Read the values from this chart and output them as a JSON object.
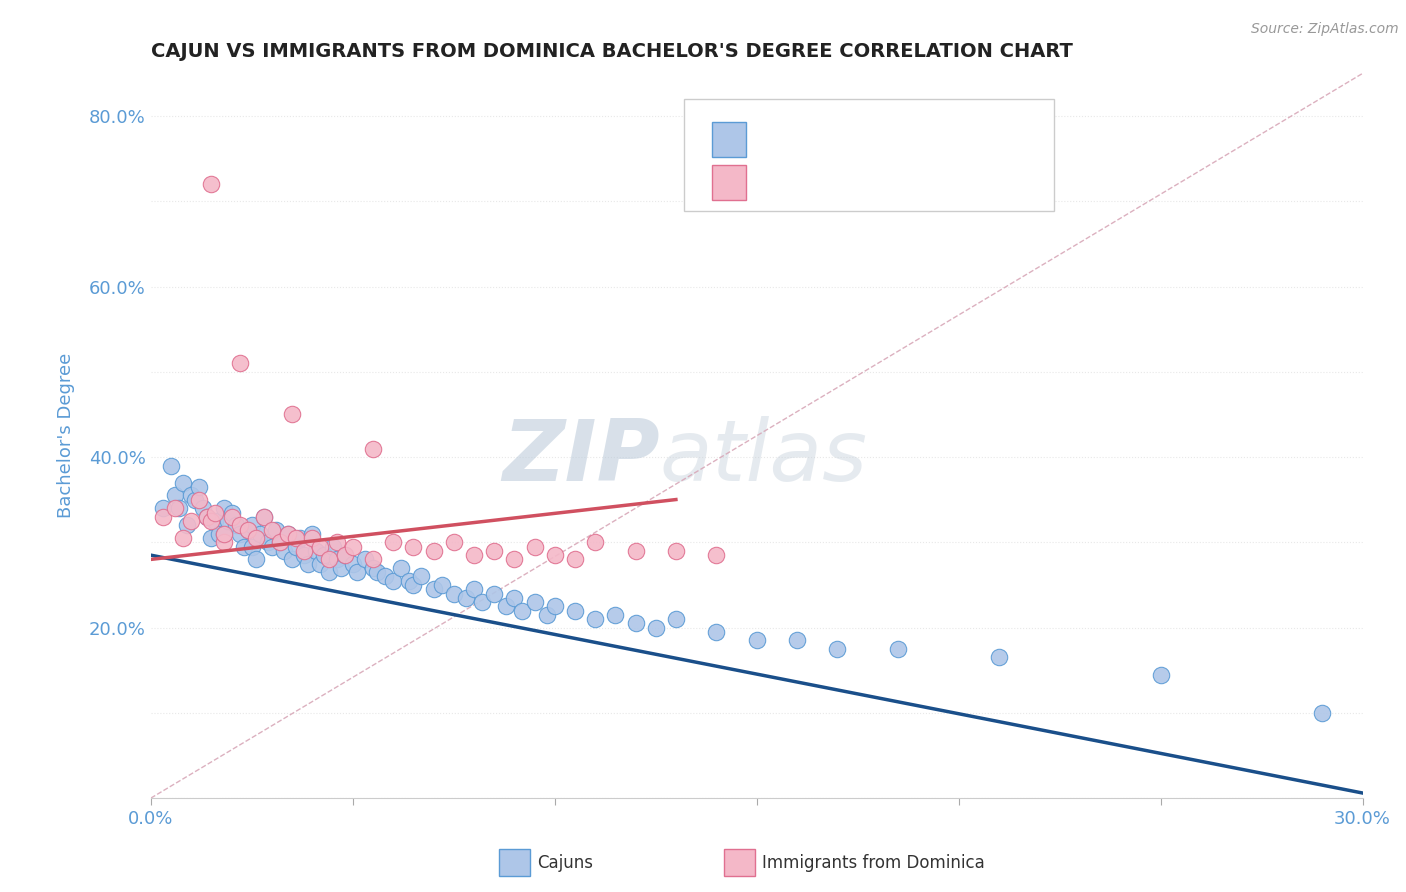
{
  "title": "CAJUN VS IMMIGRANTS FROM DOMINICA BACHELOR'S DEGREE CORRELATION CHART",
  "source_text": "Source: ZipAtlas.com",
  "ylabel": "Bachelor's Degree",
  "x_min": 0.0,
  "x_max": 0.3,
  "y_min": 0.0,
  "y_max": 0.85,
  "x_ticks": [
    0.0,
    0.05,
    0.1,
    0.15,
    0.2,
    0.25,
    0.3
  ],
  "x_tick_labels": [
    "0.0%",
    "",
    "",
    "",
    "",
    "",
    "30.0%"
  ],
  "y_ticks": [
    0.0,
    0.1,
    0.2,
    0.3,
    0.4,
    0.5,
    0.6,
    0.7,
    0.8
  ],
  "y_tick_labels": [
    "",
    "",
    "20.0%",
    "",
    "40.0%",
    "",
    "60.0%",
    "",
    "80.0%"
  ],
  "cajun_color": "#aec6e8",
  "cajun_edge_color": "#5b9bd5",
  "dominica_color": "#f4b8c8",
  "dominica_edge_color": "#e07090",
  "trend_cajun_color": "#1a4f8a",
  "trend_dominica_color": "#d05060",
  "trend_diagonal_color": "#d8a8b8",
  "title_color": "#222222",
  "axis_label_color": "#5b9bd5",
  "tick_label_color": "#5b9bd5",
  "legend_text_color": "#5b9bd5",
  "watermark_color": "#c8d8e8",
  "background_color": "#ffffff",
  "grid_color": "#e8e8e8",
  "cajun_points_x": [
    0.003,
    0.005,
    0.006,
    0.007,
    0.008,
    0.009,
    0.01,
    0.011,
    0.012,
    0.013,
    0.014,
    0.015,
    0.016,
    0.017,
    0.018,
    0.018,
    0.019,
    0.02,
    0.021,
    0.022,
    0.023,
    0.024,
    0.025,
    0.025,
    0.026,
    0.027,
    0.028,
    0.029,
    0.03,
    0.031,
    0.032,
    0.033,
    0.034,
    0.035,
    0.036,
    0.037,
    0.038,
    0.039,
    0.04,
    0.041,
    0.042,
    0.043,
    0.044,
    0.045,
    0.046,
    0.047,
    0.048,
    0.05,
    0.051,
    0.053,
    0.055,
    0.056,
    0.058,
    0.06,
    0.062,
    0.064,
    0.065,
    0.067,
    0.07,
    0.072,
    0.075,
    0.078,
    0.08,
    0.082,
    0.085,
    0.088,
    0.09,
    0.092,
    0.095,
    0.098,
    0.1,
    0.105,
    0.11,
    0.115,
    0.12,
    0.125,
    0.13,
    0.14,
    0.15,
    0.16,
    0.17,
    0.185,
    0.21,
    0.25,
    0.29
  ],
  "cajun_points_y": [
    0.34,
    0.39,
    0.355,
    0.34,
    0.37,
    0.32,
    0.355,
    0.35,
    0.365,
    0.34,
    0.33,
    0.305,
    0.325,
    0.31,
    0.34,
    0.31,
    0.325,
    0.335,
    0.32,
    0.31,
    0.295,
    0.315,
    0.32,
    0.295,
    0.28,
    0.31,
    0.33,
    0.3,
    0.295,
    0.315,
    0.3,
    0.29,
    0.31,
    0.28,
    0.295,
    0.305,
    0.285,
    0.275,
    0.31,
    0.29,
    0.275,
    0.285,
    0.265,
    0.295,
    0.28,
    0.27,
    0.285,
    0.275,
    0.265,
    0.28,
    0.27,
    0.265,
    0.26,
    0.255,
    0.27,
    0.255,
    0.25,
    0.26,
    0.245,
    0.25,
    0.24,
    0.235,
    0.245,
    0.23,
    0.24,
    0.225,
    0.235,
    0.22,
    0.23,
    0.215,
    0.225,
    0.22,
    0.21,
    0.215,
    0.205,
    0.2,
    0.21,
    0.195,
    0.185,
    0.185,
    0.175,
    0.175,
    0.165,
    0.145,
    0.1
  ],
  "dominica_points_x": [
    0.003,
    0.006,
    0.008,
    0.01,
    0.012,
    0.014,
    0.015,
    0.016,
    0.018,
    0.018,
    0.02,
    0.022,
    0.024,
    0.026,
    0.028,
    0.03,
    0.032,
    0.034,
    0.036,
    0.038,
    0.04,
    0.042,
    0.044,
    0.046,
    0.048,
    0.05,
    0.055,
    0.06,
    0.065,
    0.07,
    0.075,
    0.08,
    0.085,
    0.09,
    0.095,
    0.1,
    0.105,
    0.11,
    0.12,
    0.13,
    0.14,
    0.015,
    0.022,
    0.035,
    0.055
  ],
  "dominica_points_y": [
    0.33,
    0.34,
    0.305,
    0.325,
    0.35,
    0.33,
    0.325,
    0.335,
    0.3,
    0.31,
    0.33,
    0.32,
    0.315,
    0.305,
    0.33,
    0.315,
    0.3,
    0.31,
    0.305,
    0.29,
    0.305,
    0.295,
    0.28,
    0.3,
    0.285,
    0.295,
    0.28,
    0.3,
    0.295,
    0.29,
    0.3,
    0.285,
    0.29,
    0.28,
    0.295,
    0.285,
    0.28,
    0.3,
    0.29,
    0.29,
    0.285,
    0.72,
    0.51,
    0.45,
    0.41
  ],
  "watermark_zip": "ZIP",
  "watermark_atlas": "atlas"
}
